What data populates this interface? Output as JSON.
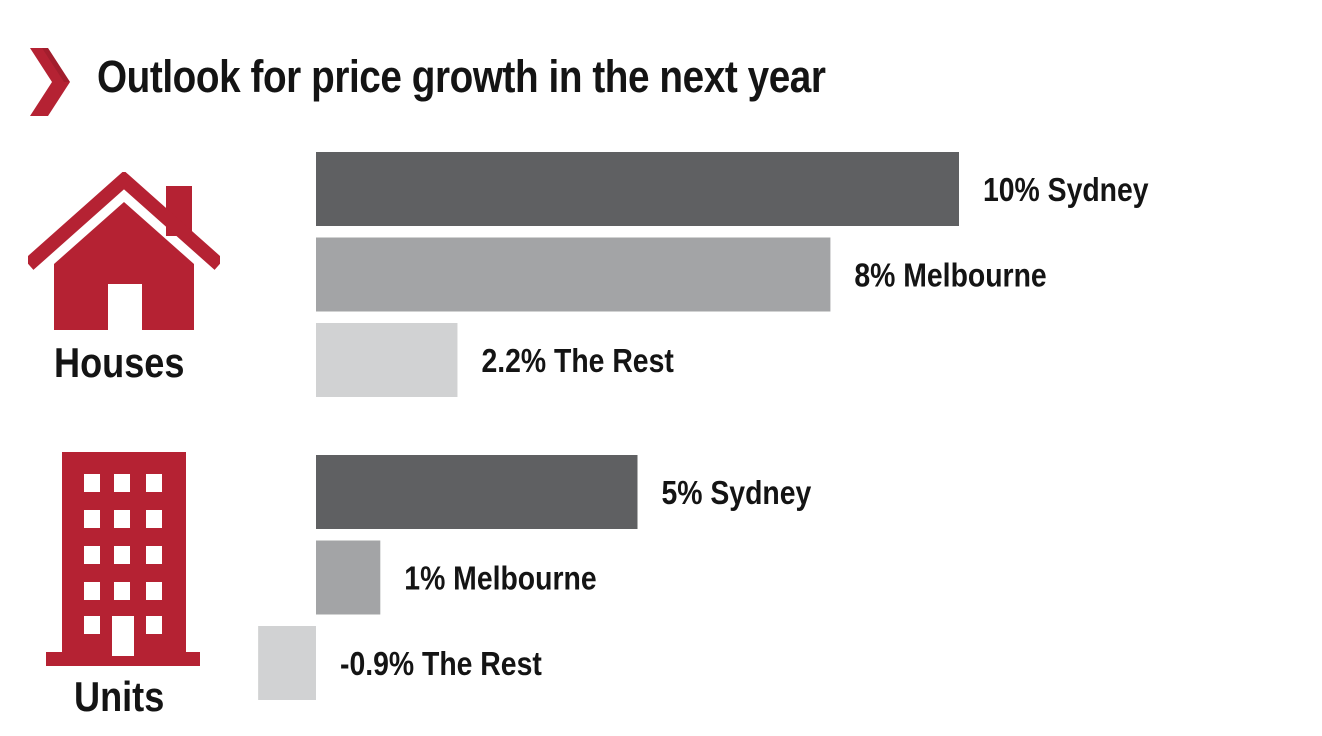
{
  "title": "Outlook for price growth in the next year",
  "icons": {
    "title_marker": "chevron-right-icon",
    "houses": "house-icon",
    "units": "apartment-building-icon"
  },
  "colors": {
    "accent": "#b52233",
    "sydney": "#5f6062",
    "melbourne": "#a3a4a6",
    "rest": "#d1d2d3"
  },
  "chart_data": {
    "type": "bar",
    "orientation": "horizontal",
    "title": "Outlook for price growth in the next year",
    "xlabel": "",
    "ylabel": "",
    "unit": "%",
    "groups": [
      {
        "name": "Houses",
        "categories": [
          "Sydney",
          "Melbourne",
          "The Rest"
        ],
        "values": [
          10,
          8,
          2.2
        ],
        "labels": [
          "10% Sydney",
          "8% Melbourne",
          "2.2% The Rest"
        ]
      },
      {
        "name": "Units",
        "categories": [
          "Sydney",
          "Melbourne",
          "The Rest"
        ],
        "values": [
          5,
          1,
          -0.9
        ],
        "labels": [
          "5% Sydney",
          "1% Melbourne",
          "-0.9% The Rest"
        ]
      }
    ],
    "grid": false,
    "legend": "none"
  }
}
